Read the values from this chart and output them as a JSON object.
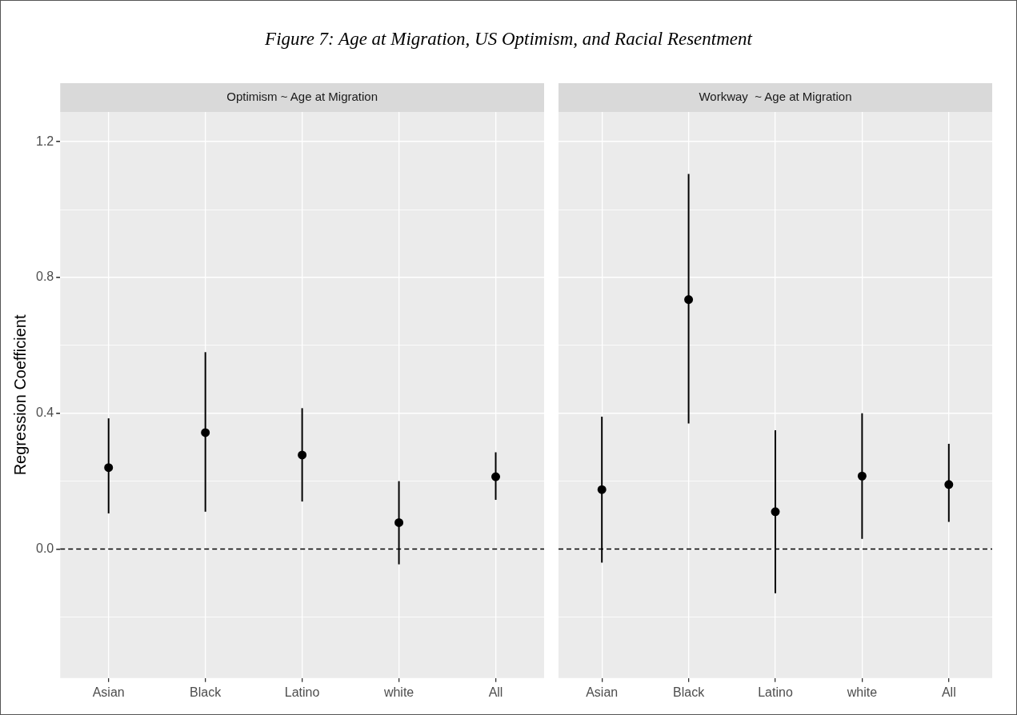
{
  "chart_data": [
    {
      "type": "scatter",
      "title": "Figure 7: Age at Migration, US Optimism, and Racial Resentment",
      "subtitle": "Optimism ~ Age at Migration",
      "ylabel": "Regression Coefficient",
      "categories": [
        "Asian",
        "Black",
        "Latino",
        "white",
        "All"
      ],
      "series": [
        {
          "color": "#000000",
          "values": [
            0.24,
            0.343,
            0.277,
            0.078,
            0.213
          ],
          "errors": [
            [
              0.105,
              0.385
            ],
            [
              0.11,
              0.58
            ],
            [
              0.14,
              0.415
            ],
            [
              -0.045,
              0.2
            ],
            [
              0.145,
              0.285
            ]
          ]
        }
      ],
      "ylim": [
        -0.38,
        1.2875
      ],
      "yticks": [
        {
          "value": -0.2,
          "label": null
        },
        {
          "value": 0,
          "label": "0.0"
        },
        {
          "value": 0.2,
          "label": null
        },
        0.4,
        {
          "value": 0.6,
          "label": null
        },
        0.8,
        {
          "value": 1.0,
          "label": null
        },
        1.2
      ],
      "ref_lines": [
        {
          "axis": "y",
          "value": 0,
          "color": "#000000",
          "line_style": "dashed"
        }
      ],
      "grid": true,
      "legend": false,
      "marker": "circle"
    },
    {
      "type": "scatter",
      "subtitle": "Workway  ~ Age at Migration",
      "categories": [
        "Asian",
        "Black",
        "Latino",
        "white",
        "All"
      ],
      "series": [
        {
          "color": "#000000",
          "values": [
            0.175,
            0.735,
            0.11,
            0.215,
            0.19
          ],
          "errors": [
            [
              -0.04,
              0.39
            ],
            [
              0.37,
              1.105
            ],
            [
              -0.13,
              0.35
            ],
            [
              0.03,
              0.4
            ],
            [
              0.08,
              0.31
            ]
          ]
        }
      ],
      "ylim": [
        -0.38,
        1.2875
      ],
      "yticks": [
        {
          "value": -0.2,
          "label": null
        },
        0,
        {
          "value": 0.2,
          "label": null
        },
        0.4,
        {
          "value": 0.6,
          "label": null
        },
        0.8,
        {
          "value": 1.0,
          "label": null
        },
        1.2
      ],
      "ref_lines": [
        {
          "axis": "y",
          "value": 0,
          "color": "#000000",
          "line_style": "dashed"
        }
      ],
      "grid": true,
      "legend": false,
      "marker": "circle",
      "tick_labels": "x"
    }
  ]
}
